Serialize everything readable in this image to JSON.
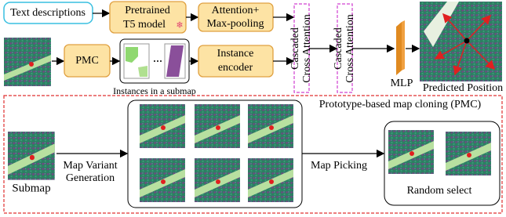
{
  "top": {
    "text_descriptions": "Text descriptions",
    "t5": [
      "Pretrained",
      "T5 model"
    ],
    "attention": [
      "Attention+",
      "Max-pooling"
    ],
    "pmc": "PMC",
    "instance_encoder": [
      "Instance",
      "encoder"
    ],
    "instances_caption": "Instances in a submap",
    "cascaded_1": [
      "Cascaded",
      "Cross Attention"
    ],
    "cascaded_2": [
      "Cascaded",
      "Cross Attention"
    ],
    "mlp": "MLP",
    "predicted": "Predicted Position"
  },
  "pmc_panel": {
    "title": "Prototype-based map cloning (PMC)",
    "submap": "Submap",
    "variant": [
      "Map Variant",
      "Generation"
    ],
    "picking": "Map Picking",
    "random": "Random select"
  }
}
